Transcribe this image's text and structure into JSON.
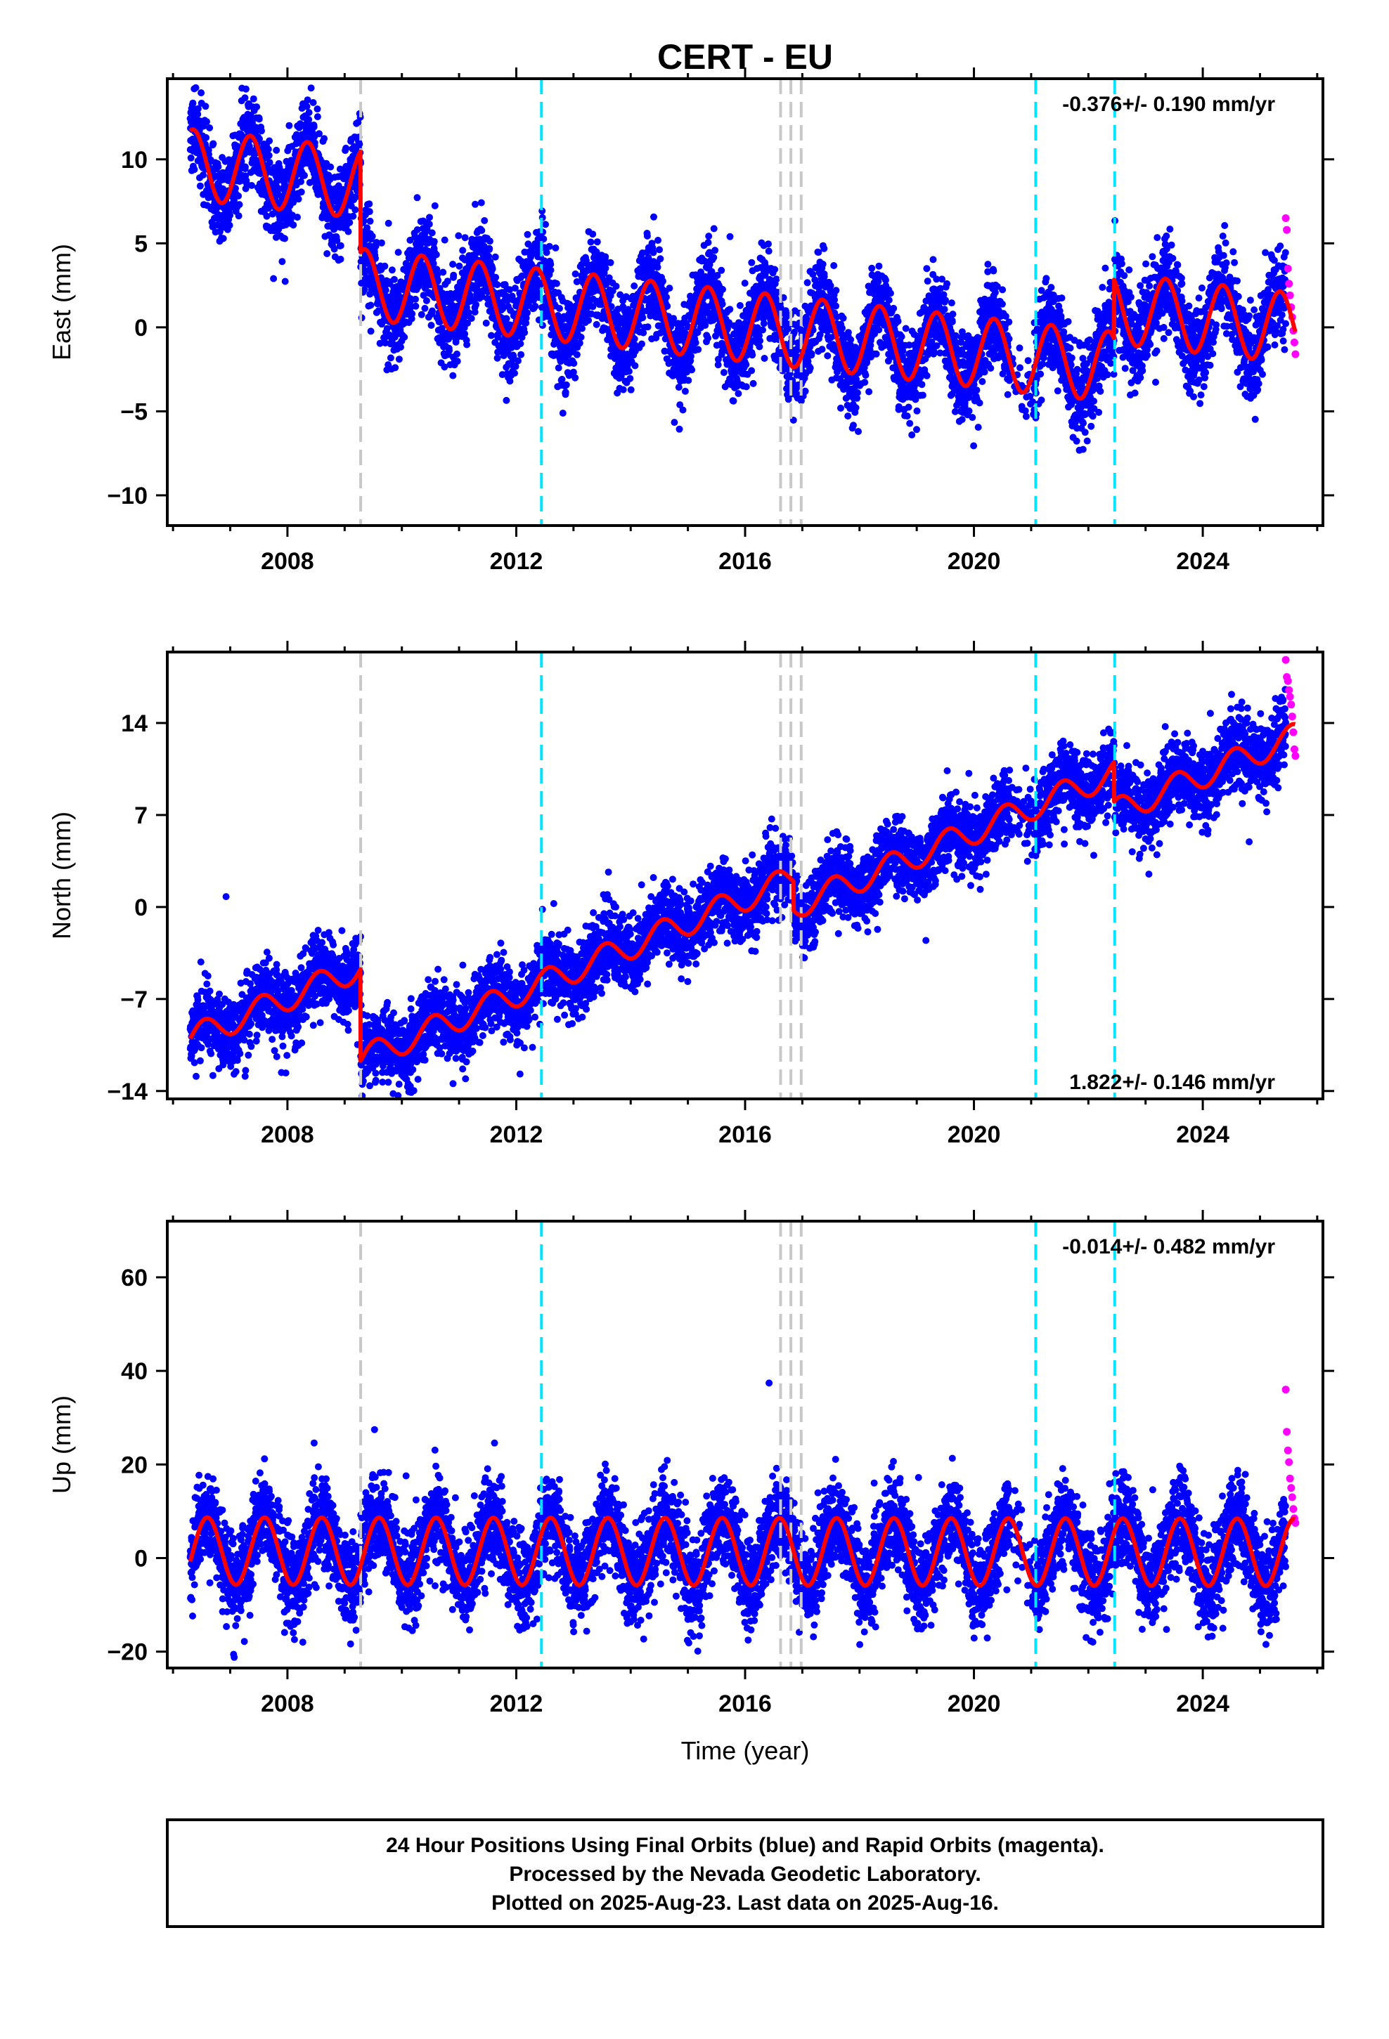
{
  "title": "CERT - EU",
  "caption": {
    "lines": [
      "24 Hour Positions Using Final Orbits (blue) and Rapid Orbits (magenta).",
      "Processed by the Nevada Geodetic Laboratory.",
      "Plotted on 2025-Aug-23. Last data on 2025-Aug-16."
    ]
  },
  "chart_data": [
    {
      "type": "scatter",
      "component": "east",
      "ylabel": "East (mm)",
      "xlabel": "",
      "xlim": [
        2005.9,
        2026.1
      ],
      "ylim": [
        -11.8,
        14.8
      ],
      "xticks": [
        2008,
        2012,
        2016,
        2020,
        2024
      ],
      "yticks": [
        -10,
        -5,
        0,
        5,
        10
      ],
      "rate_text": "-0.376+/- 0.190 mm/yr",
      "rate_position": "top-right",
      "grid": false,
      "colors": {
        "final": "#0000ff",
        "rapid": "#ff00ff",
        "model": "#ff0000",
        "equipment_change": "#c8c8c8",
        "earthquake": "#00e5ff"
      },
      "offsets": [
        {
          "t": 2009.28,
          "dy": -6.0
        },
        {
          "t": 2022.45,
          "dy": 3.5
        }
      ],
      "trend": {
        "t0": 2006.3,
        "y0": 9.7,
        "rate": -0.376
      },
      "seasonal": {
        "amplitude": 2.1,
        "phase": 0.1
      },
      "model_gap": [
        2020.6,
        2021.2
      ],
      "scatter_sigma": 1.3,
      "series": [
        {
          "name": "Final Orbits",
          "role": "final",
          "x_range": [
            2006.3,
            2025.45
          ]
        },
        {
          "name": "Rapid Orbits",
          "role": "rapid",
          "x_range": [
            2025.45,
            2025.62
          ],
          "values": [
            6.5,
            5.8,
            3.5,
            2.6,
            1.9,
            1.2,
            0.6,
            -0.2,
            -0.9,
            -1.6
          ]
        },
        {
          "name": "Model",
          "role": "model"
        }
      ]
    },
    {
      "type": "scatter",
      "component": "north",
      "ylabel": "North (mm)",
      "xlabel": "",
      "xlim": [
        2005.9,
        2026.1
      ],
      "ylim": [
        -14.6,
        19.4
      ],
      "xticks": [
        2008,
        2012,
        2016,
        2020,
        2024
      ],
      "yticks": [
        -14,
        -7,
        0,
        7,
        14
      ],
      "rate_text": "1.822+/- 0.146 mm/yr",
      "rate_position": "bottom-right",
      "grid": false,
      "colors": {
        "final": "#0000ff",
        "rapid": "#ff00ff",
        "model": "#ff0000",
        "equipment_change": "#c8c8c8",
        "earthquake": "#00e5ff"
      },
      "offsets": [
        {
          "t": 2009.28,
          "dy": -7.0
        },
        {
          "t": 2016.85,
          "dy": -2.2
        },
        {
          "t": 2022.45,
          "dy": -3.0
        }
      ],
      "trend": {
        "t0": 2006.3,
        "y0": -10.0,
        "rate": 1.822
      },
      "seasonal": {
        "amplitude": 1.0,
        "phase": 0.3
      },
      "model_gap": [
        2020.6,
        2021.2
      ],
      "scatter_sigma": 1.4,
      "series": [
        {
          "name": "Final Orbits",
          "role": "final",
          "x_range": [
            2006.3,
            2025.45
          ]
        },
        {
          "name": "Rapid Orbits",
          "role": "rapid",
          "x_range": [
            2025.45,
            2025.62
          ],
          "values": [
            18.8,
            17.5,
            17.2,
            16.5,
            16.0,
            15.4,
            14.5,
            13.3,
            12.0,
            11.5
          ]
        },
        {
          "name": "Model",
          "role": "model"
        }
      ]
    },
    {
      "type": "scatter",
      "component": "up",
      "ylabel": "Up (mm)",
      "xlabel": "Time (year)",
      "xlim": [
        2005.9,
        2026.1
      ],
      "ylim": [
        -23.5,
        72.0
      ],
      "xticks": [
        2008,
        2012,
        2016,
        2020,
        2024
      ],
      "yticks": [
        -20,
        0,
        20,
        40,
        60
      ],
      "rate_text": "-0.014+/- 0.482 mm/yr",
      "rate_position": "top-right",
      "grid": false,
      "colors": {
        "final": "#0000ff",
        "rapid": "#ff00ff",
        "model": "#ff0000",
        "equipment_change": "#c8c8c8",
        "earthquake": "#00e5ff"
      },
      "offsets": [],
      "trend": {
        "t0": 2006.3,
        "y0": 1.5,
        "rate": -0.014
      },
      "seasonal": {
        "amplitude": 7.2,
        "phase": 0.35
      },
      "model_gap": [
        2020.6,
        2021.2
      ],
      "scatter_sigma": 4.8,
      "series": [
        {
          "name": "Final Orbits",
          "role": "final",
          "x_range": [
            2006.3,
            2025.45
          ]
        },
        {
          "name": "Rapid Orbits",
          "role": "rapid",
          "x_range": [
            2025.45,
            2025.62
          ],
          "values": [
            36.0,
            27.0,
            23.0,
            20.5,
            17.0,
            15.0,
            13.0,
            10.5,
            8.5,
            7.5
          ]
        },
        {
          "name": "Model",
          "role": "model"
        }
      ]
    }
  ],
  "equipment_changes": [
    2009.28,
    2016.62,
    2016.8,
    2016.98
  ],
  "earthquakes": [
    2012.44,
    2021.08,
    2022.46
  ]
}
